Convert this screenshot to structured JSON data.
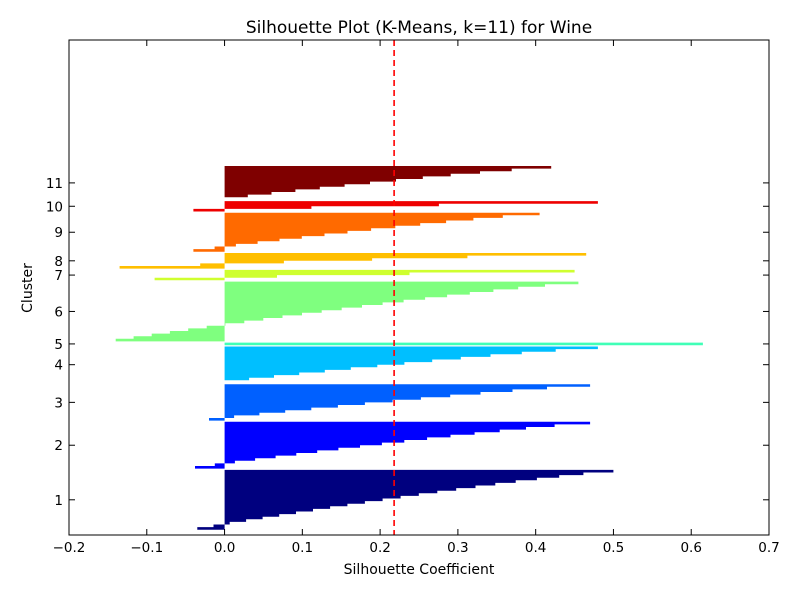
{
  "chart_data": {
    "type": "area",
    "title": "Silhouette Plot (K-Means, k=11) for Wine",
    "xlabel": "Silhouette Coefficient",
    "ylabel": "Cluster",
    "xlim": [
      -0.2,
      0.7
    ],
    "x_ticks": [
      "−0.2",
      "−0.1",
      "0.0",
      "0.1",
      "0.2",
      "0.3",
      "0.4",
      "0.5",
      "0.6",
      "0.7"
    ],
    "grid": false,
    "average_silhouette": 0.218,
    "average_line_color": "#ff0000",
    "clusters": [
      {
        "label": "1",
        "size": 23,
        "max": 0.5,
        "min": -0.035,
        "color": "#00007f"
      },
      {
        "label": "2",
        "size": 18,
        "max": 0.47,
        "min": -0.038,
        "color": "#0000ff"
      },
      {
        "label": "3",
        "size": 14,
        "max": 0.47,
        "min": -0.02,
        "color": "#0060ff"
      },
      {
        "label": "4",
        "size": 14,
        "max": 0.48,
        "min": 0.0,
        "color": "#00bfff"
      },
      {
        "label": "5",
        "size": 1,
        "max": 0.615,
        "min": -0.015,
        "color": "#40ffb7"
      },
      {
        "label": "6",
        "size": 23,
        "max": 0.455,
        "min": -0.14,
        "color": "#7fff7f"
      },
      {
        "label": "7",
        "size": 4,
        "max": 0.45,
        "min": -0.09,
        "color": "#cfff2f"
      },
      {
        "label": "8",
        "size": 6,
        "max": 0.465,
        "min": -0.135,
        "color": "#ffbf00"
      },
      {
        "label": "9",
        "size": 15,
        "max": 0.405,
        "min": -0.04,
        "color": "#ff6a00"
      },
      {
        "label": "10",
        "size": 4,
        "max": 0.48,
        "min": -0.04,
        "color": "#ee0000"
      },
      {
        "label": "11",
        "size": 13,
        "max": 0.42,
        "min": 0.0,
        "color": "#7f0000"
      }
    ]
  }
}
